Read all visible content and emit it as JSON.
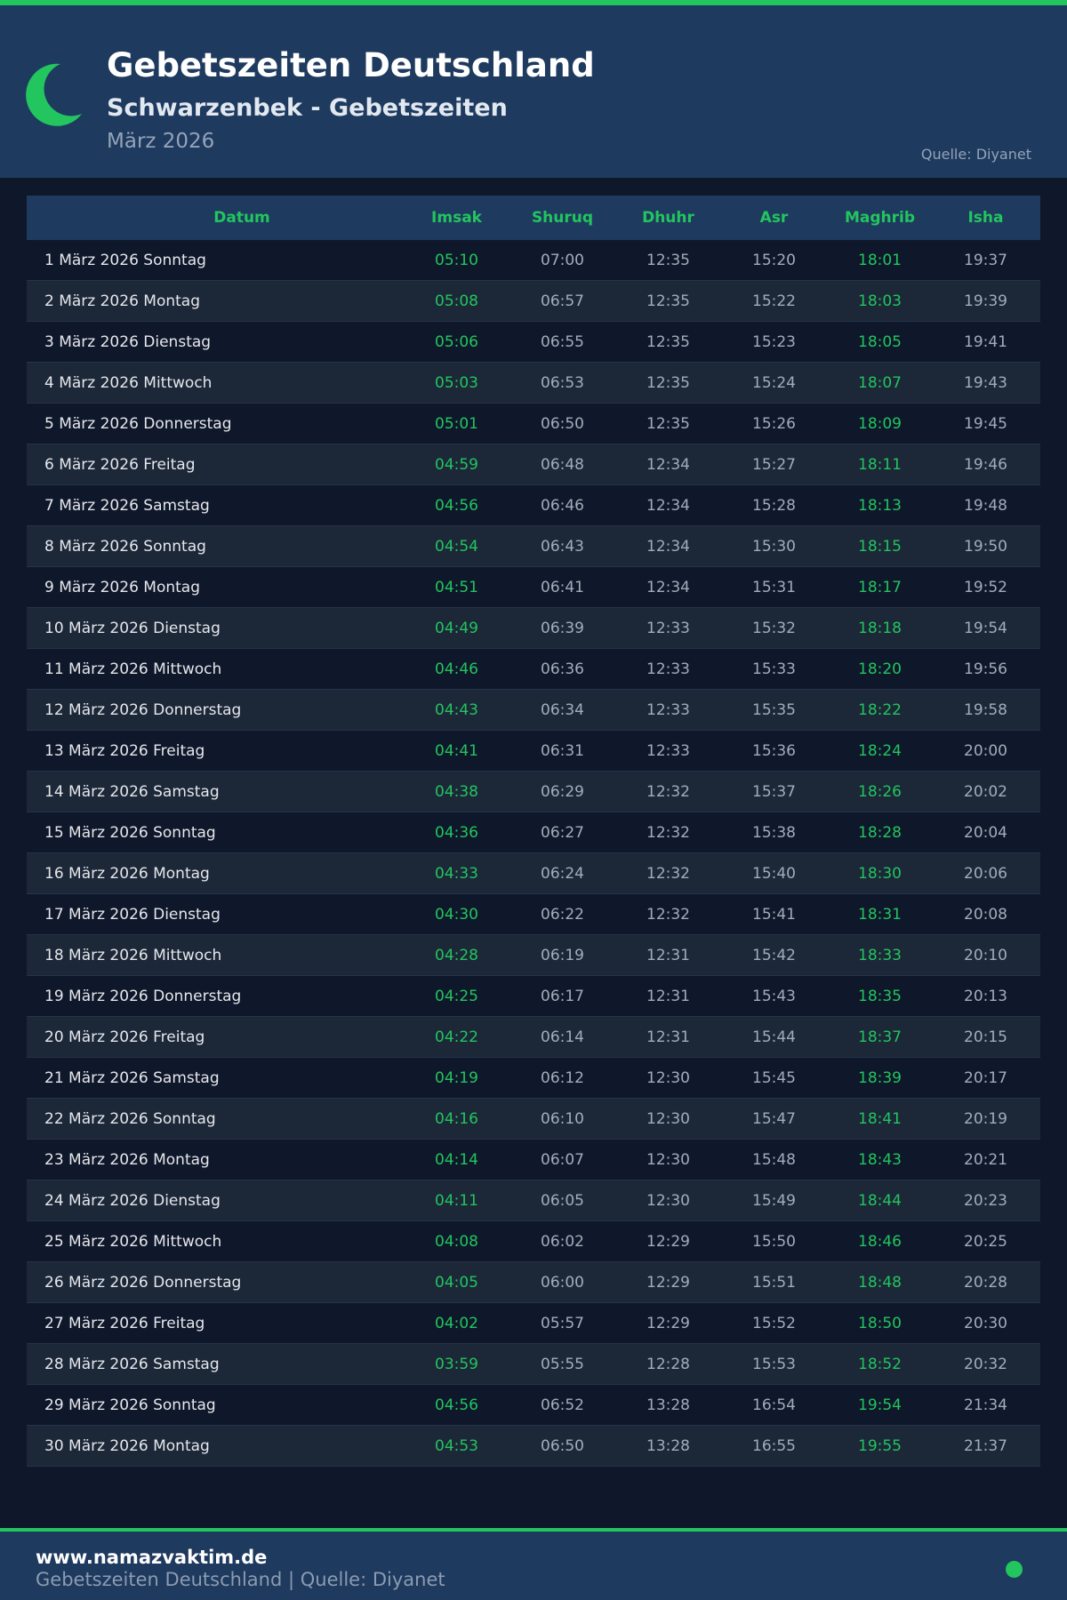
{
  "header": {
    "title": "Gebetszeiten Deutschland",
    "subtitle": "Schwarzenbek - Gebetszeiten",
    "month": "März 2026",
    "source": "Quelle: Diyanet",
    "icon": "crescent-moon-icon"
  },
  "colors": {
    "accent": "#22c55e",
    "header_bg": "#1e3a5f",
    "page_bg": "#0f172a"
  },
  "table": {
    "columns": [
      "Datum",
      "Imsak",
      "Shuruq",
      "Dhuhr",
      "Asr",
      "Maghrib",
      "Isha"
    ],
    "rows": [
      [
        "1 März 2026 Sonntag",
        "05:10",
        "07:00",
        "12:35",
        "15:20",
        "18:01",
        "19:37"
      ],
      [
        "2 März 2026 Montag",
        "05:08",
        "06:57",
        "12:35",
        "15:22",
        "18:03",
        "19:39"
      ],
      [
        "3 März 2026 Dienstag",
        "05:06",
        "06:55",
        "12:35",
        "15:23",
        "18:05",
        "19:41"
      ],
      [
        "4 März 2026 Mittwoch",
        "05:03",
        "06:53",
        "12:35",
        "15:24",
        "18:07",
        "19:43"
      ],
      [
        "5 März 2026 Donnerstag",
        "05:01",
        "06:50",
        "12:35",
        "15:26",
        "18:09",
        "19:45"
      ],
      [
        "6 März 2026 Freitag",
        "04:59",
        "06:48",
        "12:34",
        "15:27",
        "18:11",
        "19:46"
      ],
      [
        "7 März 2026 Samstag",
        "04:56",
        "06:46",
        "12:34",
        "15:28",
        "18:13",
        "19:48"
      ],
      [
        "8 März 2026 Sonntag",
        "04:54",
        "06:43",
        "12:34",
        "15:30",
        "18:15",
        "19:50"
      ],
      [
        "9 März 2026 Montag",
        "04:51",
        "06:41",
        "12:34",
        "15:31",
        "18:17",
        "19:52"
      ],
      [
        "10 März 2026 Dienstag",
        "04:49",
        "06:39",
        "12:33",
        "15:32",
        "18:18",
        "19:54"
      ],
      [
        "11 März 2026 Mittwoch",
        "04:46",
        "06:36",
        "12:33",
        "15:33",
        "18:20",
        "19:56"
      ],
      [
        "12 März 2026 Donnerstag",
        "04:43",
        "06:34",
        "12:33",
        "15:35",
        "18:22",
        "19:58"
      ],
      [
        "13 März 2026 Freitag",
        "04:41",
        "06:31",
        "12:33",
        "15:36",
        "18:24",
        "20:00"
      ],
      [
        "14 März 2026 Samstag",
        "04:38",
        "06:29",
        "12:32",
        "15:37",
        "18:26",
        "20:02"
      ],
      [
        "15 März 2026 Sonntag",
        "04:36",
        "06:27",
        "12:32",
        "15:38",
        "18:28",
        "20:04"
      ],
      [
        "16 März 2026 Montag",
        "04:33",
        "06:24",
        "12:32",
        "15:40",
        "18:30",
        "20:06"
      ],
      [
        "17 März 2026 Dienstag",
        "04:30",
        "06:22",
        "12:32",
        "15:41",
        "18:31",
        "20:08"
      ],
      [
        "18 März 2026 Mittwoch",
        "04:28",
        "06:19",
        "12:31",
        "15:42",
        "18:33",
        "20:10"
      ],
      [
        "19 März 2026 Donnerstag",
        "04:25",
        "06:17",
        "12:31",
        "15:43",
        "18:35",
        "20:13"
      ],
      [
        "20 März 2026 Freitag",
        "04:22",
        "06:14",
        "12:31",
        "15:44",
        "18:37",
        "20:15"
      ],
      [
        "21 März 2026 Samstag",
        "04:19",
        "06:12",
        "12:30",
        "15:45",
        "18:39",
        "20:17"
      ],
      [
        "22 März 2026 Sonntag",
        "04:16",
        "06:10",
        "12:30",
        "15:47",
        "18:41",
        "20:19"
      ],
      [
        "23 März 2026 Montag",
        "04:14",
        "06:07",
        "12:30",
        "15:48",
        "18:43",
        "20:21"
      ],
      [
        "24 März 2026 Dienstag",
        "04:11",
        "06:05",
        "12:30",
        "15:49",
        "18:44",
        "20:23"
      ],
      [
        "25 März 2026 Mittwoch",
        "04:08",
        "06:02",
        "12:29",
        "15:50",
        "18:46",
        "20:25"
      ],
      [
        "26 März 2026 Donnerstag",
        "04:05",
        "06:00",
        "12:29",
        "15:51",
        "18:48",
        "20:28"
      ],
      [
        "27 März 2026 Freitag",
        "04:02",
        "05:57",
        "12:29",
        "15:52",
        "18:50",
        "20:30"
      ],
      [
        "28 März 2026 Samstag",
        "03:59",
        "05:55",
        "12:28",
        "15:53",
        "18:52",
        "20:32"
      ],
      [
        "29 März 2026 Sonntag",
        "04:56",
        "06:52",
        "13:28",
        "16:54",
        "19:54",
        "21:34"
      ],
      [
        "30 März 2026 Montag",
        "04:53",
        "06:50",
        "13:28",
        "16:55",
        "19:55",
        "21:37"
      ]
    ]
  },
  "footer": {
    "site": "www.namazvaktim.de",
    "text": "Gebetszeiten Deutschland | Quelle: Diyanet"
  }
}
